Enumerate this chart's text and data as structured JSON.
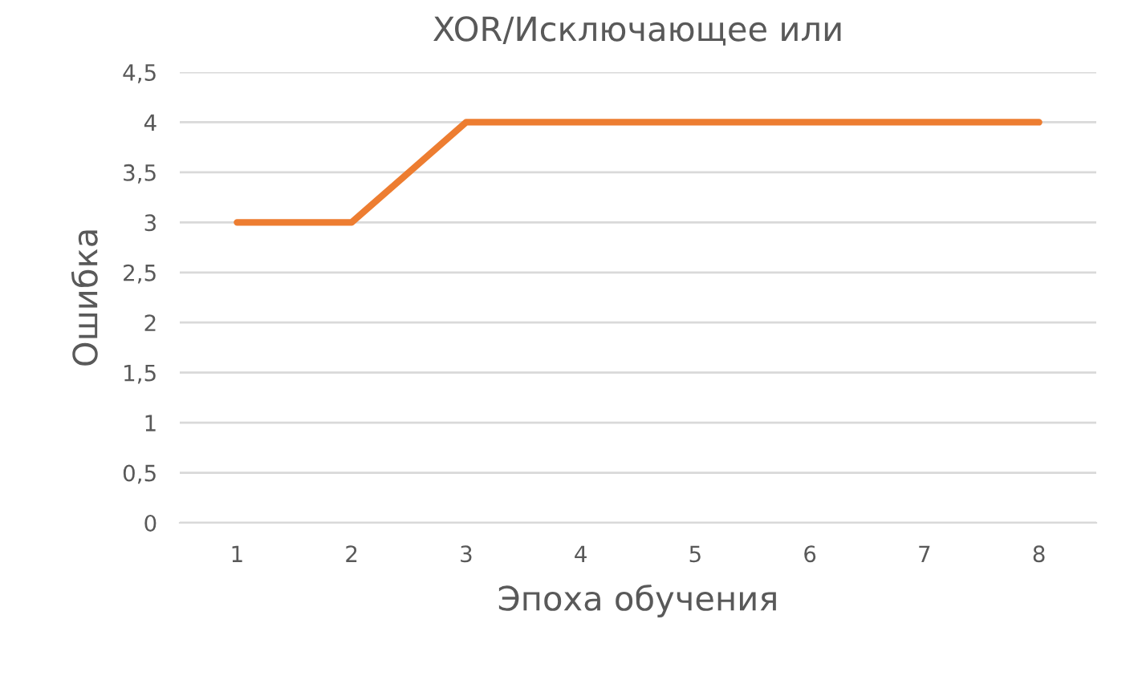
{
  "chart_data": {
    "type": "line",
    "title": "XOR/Исключающее или",
    "xlabel": "Эпоха обучения",
    "ylabel": "Ошибка",
    "categories": [
      "1",
      "2",
      "3",
      "4",
      "5",
      "6",
      "7",
      "8"
    ],
    "series": [
      {
        "color": "#ed7d31",
        "values": [
          3,
          3,
          4,
          4,
          4,
          4,
          4,
          4
        ]
      }
    ],
    "ylim": [
      0,
      4.5
    ],
    "yticks": [
      0,
      {
        "value": 0.5,
        "label": "0,5"
      },
      1,
      {
        "value": 1.5,
        "label": "1,5"
      },
      2,
      {
        "value": 2.5,
        "label": "2,5"
      },
      3,
      {
        "value": 3.5,
        "label": "3,5"
      },
      4,
      {
        "value": 4.5,
        "label": "4,5"
      }
    ],
    "grid": "y",
    "marker": "none",
    "line_style": "solid"
  }
}
